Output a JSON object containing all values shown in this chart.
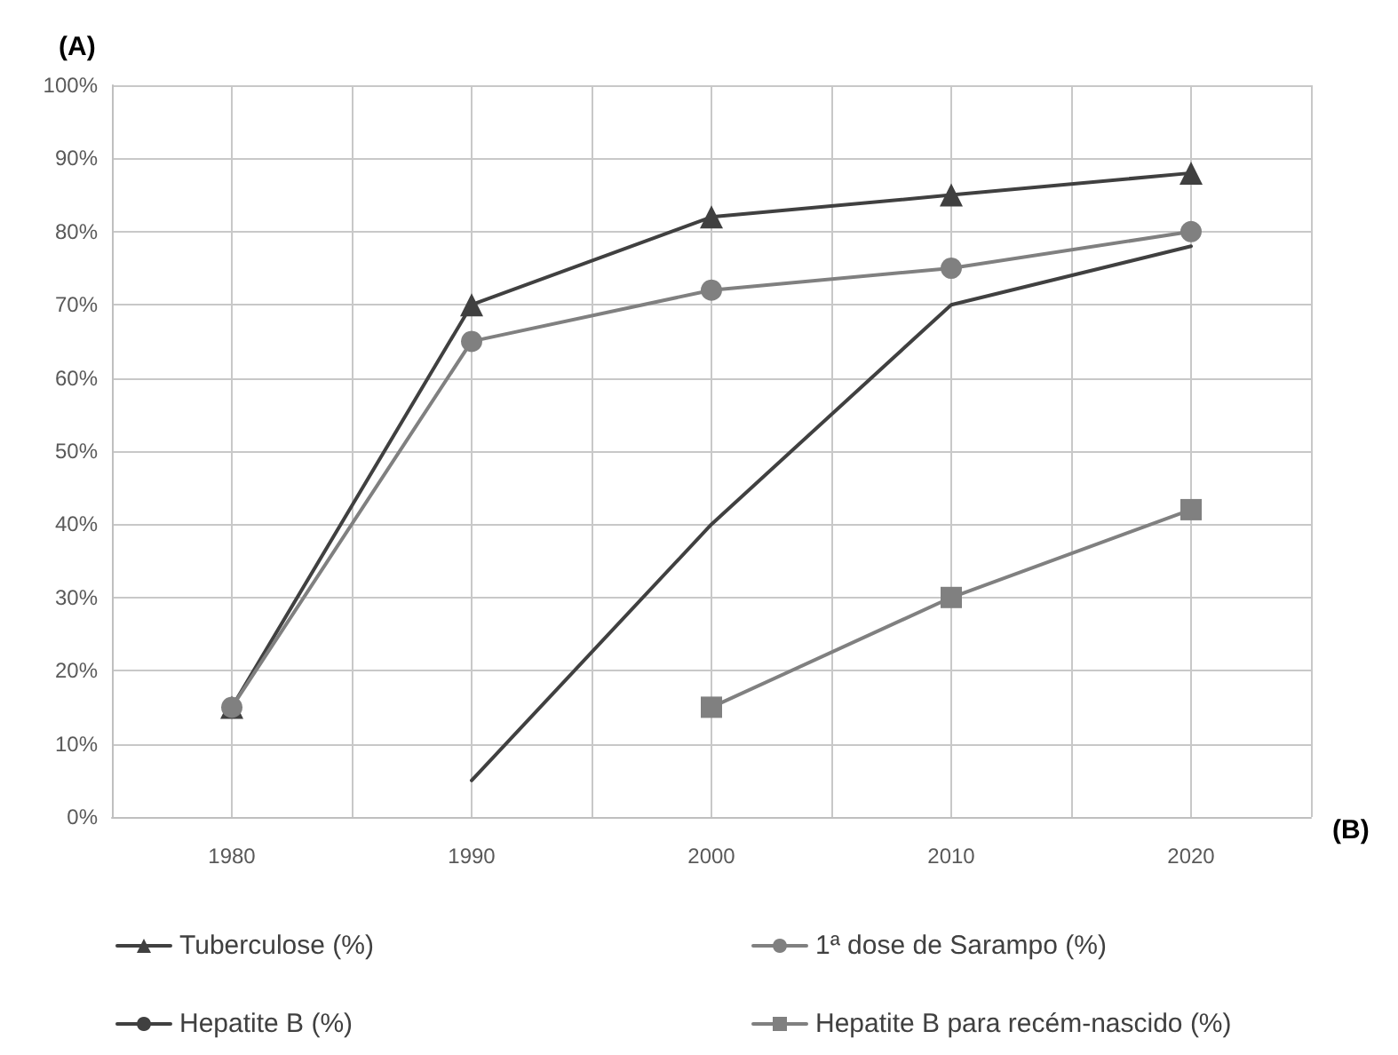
{
  "chart_data": {
    "type": "line",
    "ylabel": "(A)",
    "xlabel": "(B)",
    "x": [
      1980,
      1990,
      2000,
      2010,
      2020
    ],
    "xlim": [
      1975,
      2025
    ],
    "xticks": [
      {
        "value": 1975,
        "label": null
      },
      1980,
      {
        "value": 1985,
        "label": null
      },
      1990,
      {
        "value": 1995,
        "label": null
      },
      2000,
      {
        "value": 2005,
        "label": null
      },
      2010,
      {
        "value": 2015,
        "label": null
      },
      2020,
      {
        "value": 2025,
        "label": null
      }
    ],
    "ylim": [
      0,
      100
    ],
    "yticks": [
      {
        "value": 0,
        "label": "0%"
      },
      {
        "value": 10,
        "label": "10%"
      },
      {
        "value": 20,
        "label": "20%"
      },
      {
        "value": 30,
        "label": "30%"
      },
      {
        "value": 40,
        "label": "40%"
      },
      {
        "value": 50,
        "label": "50%"
      },
      {
        "value": 60,
        "label": "60%"
      },
      {
        "value": 70,
        "label": "70%"
      },
      {
        "value": 80,
        "label": "80%"
      },
      {
        "value": 90,
        "label": "90%"
      },
      {
        "value": 100,
        "label": "100%"
      }
    ],
    "grid": true,
    "legend": "bottom",
    "series": [
      {
        "name": "Tuberculose (%)",
        "color": "#404040",
        "marker": "triangle",
        "values": [
          15,
          70,
          82,
          85,
          88
        ]
      },
      {
        "name": "1ª dose de Sarampo (%)",
        "color": "#808080",
        "marker": "circle",
        "values": [
          15,
          65,
          72,
          75,
          80
        ]
      },
      {
        "name": "Hepatite B (%)",
        "color": "#404040",
        "marker": "none",
        "values": [
          null,
          5,
          40,
          70,
          78
        ]
      },
      {
        "name": "Hepatite B para recém-nascido (%)",
        "color": "#808080",
        "marker": "square",
        "values": [
          null,
          null,
          15,
          30,
          42
        ]
      }
    ]
  }
}
